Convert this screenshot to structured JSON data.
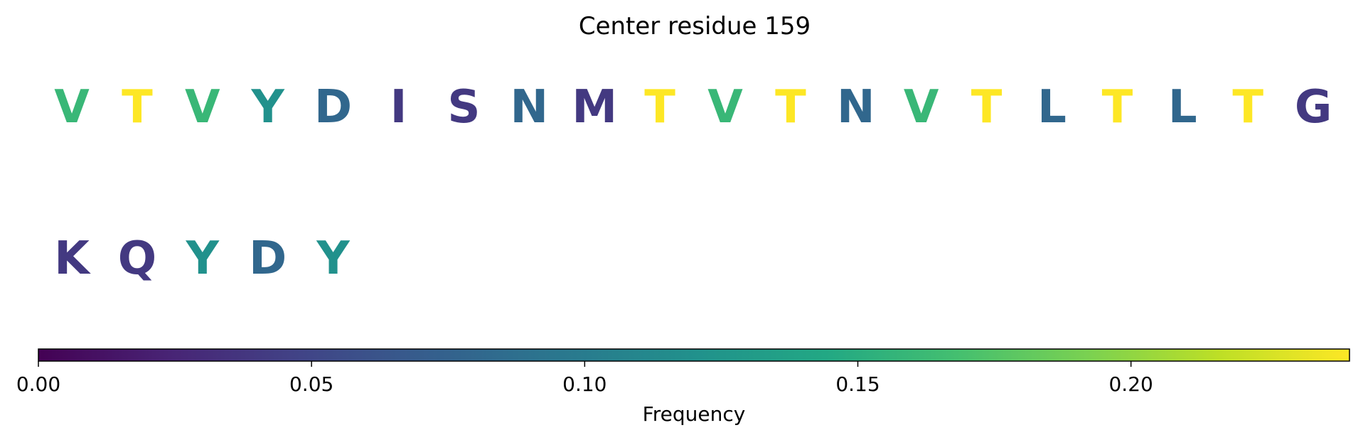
{
  "chart_data": {
    "type": "heatmap",
    "title": "Center residue 159",
    "rows": [
      [
        {
          "letter": "V",
          "value": 0.16
        },
        {
          "letter": "T",
          "value": 0.24
        },
        {
          "letter": "V",
          "value": 0.16
        },
        {
          "letter": "Y",
          "value": 0.12
        },
        {
          "letter": "D",
          "value": 0.08
        },
        {
          "letter": "I",
          "value": 0.04
        },
        {
          "letter": "S",
          "value": 0.04
        },
        {
          "letter": "N",
          "value": 0.08
        },
        {
          "letter": "M",
          "value": 0.04
        },
        {
          "letter": "T",
          "value": 0.24
        },
        {
          "letter": "V",
          "value": 0.16
        },
        {
          "letter": "T",
          "value": 0.24
        },
        {
          "letter": "N",
          "value": 0.08
        },
        {
          "letter": "V",
          "value": 0.16
        },
        {
          "letter": "T",
          "value": 0.24
        },
        {
          "letter": "L",
          "value": 0.08
        },
        {
          "letter": "T",
          "value": 0.24
        },
        {
          "letter": "L",
          "value": 0.08
        },
        {
          "letter": "T",
          "value": 0.24
        },
        {
          "letter": "G",
          "value": 0.04
        }
      ],
      [
        {
          "letter": "K",
          "value": 0.04
        },
        {
          "letter": "Q",
          "value": 0.04
        },
        {
          "letter": "Y",
          "value": 0.12
        },
        {
          "letter": "D",
          "value": 0.08
        },
        {
          "letter": "Y",
          "value": 0.12
        }
      ]
    ],
    "colorbar": {
      "label": "Frequency",
      "colormap": "viridis",
      "range": [
        0,
        0.24
      ],
      "ticks": [
        0.0,
        0.05,
        0.1,
        0.15,
        0.2
      ],
      "tick_labels": [
        "0.00",
        "0.05",
        "0.10",
        "0.15",
        "0.20"
      ],
      "orientation": "horizontal",
      "placement": "bottom"
    }
  }
}
